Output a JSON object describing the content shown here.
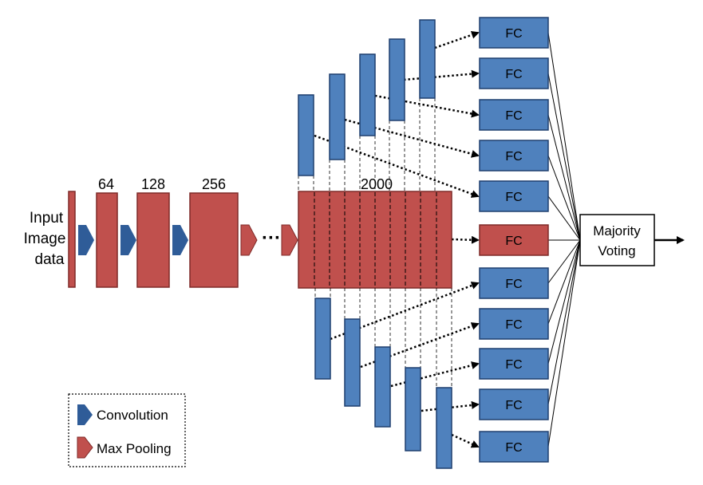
{
  "input_label": [
    "Input",
    "Image",
    "data"
  ],
  "layer_sizes": [
    "64",
    "128",
    "256",
    "2000"
  ],
  "fc_label": "FC",
  "fc_count": 11,
  "output_label": [
    "Majority",
    "Voting"
  ],
  "legend": {
    "convolution": "Convolution",
    "max_pooling": "Max Pooling"
  },
  "colors": {
    "conv_blue": "#2f5c98",
    "pool_red": "#c0504d",
    "block_blue": "#4f81bd",
    "block_blue_stroke": "#1f3f6f",
    "block_red": "#c0504d",
    "block_red_stroke": "#7f2a28",
    "ink": "#000000"
  }
}
